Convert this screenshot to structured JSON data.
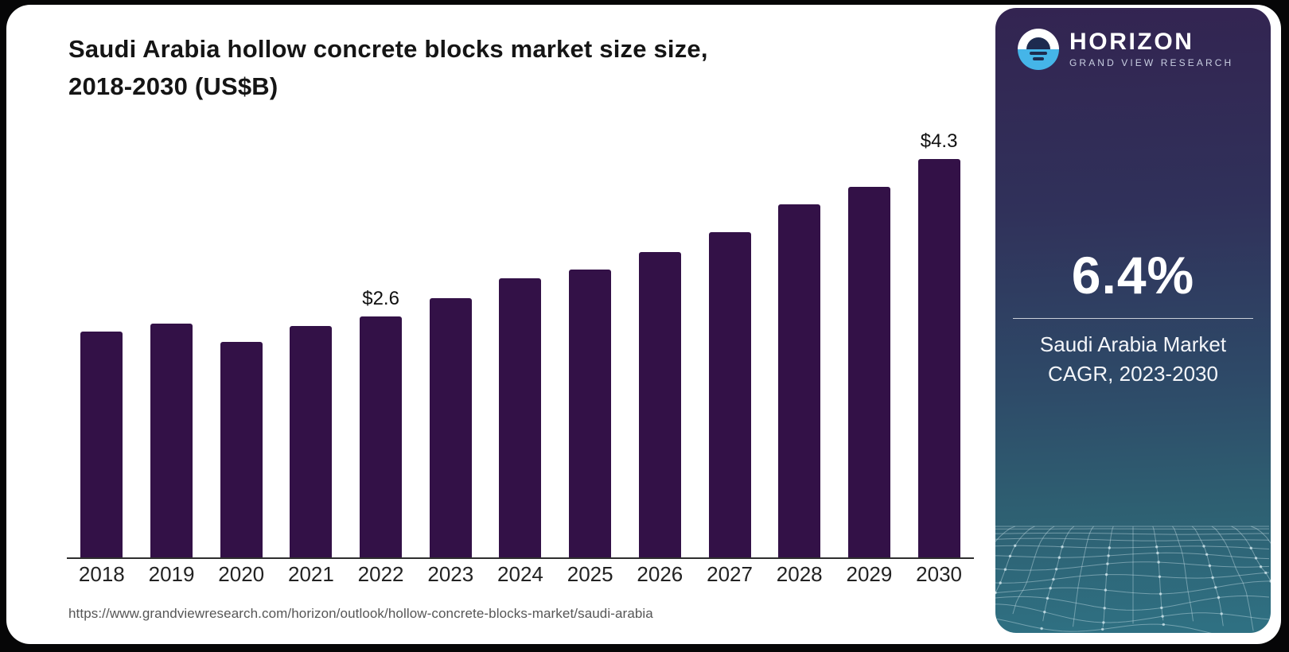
{
  "chart": {
    "title_line1": "Saudi Arabia hollow concrete blocks market size size,",
    "title_line2": "2018-2030 (US$B)",
    "source_url": "https://www.grandviewresearch.com/horizon/outlook/hollow-concrete-blocks-market/saudi-arabia",
    "bar_color": "#331147",
    "axis_color": "#2e2e2e"
  },
  "chart_data": {
    "type": "bar",
    "title": "Saudi Arabia hollow concrete blocks market size size, 2018-2030 (US$B)",
    "categories": [
      "2018",
      "2019",
      "2020",
      "2021",
      "2022",
      "2023",
      "2024",
      "2025",
      "2026",
      "2027",
      "2028",
      "2029",
      "2030"
    ],
    "values": [
      2.44,
      2.52,
      2.33,
      2.5,
      2.6,
      2.8,
      3.01,
      3.11,
      3.3,
      3.51,
      3.81,
      4.0,
      4.3
    ],
    "data_labels": {
      "2022": "$2.6",
      "2030": "$4.3"
    },
    "xlabel": "",
    "ylabel": "",
    "ylim": [
      0,
      4.6
    ],
    "grid": false,
    "legend": "none"
  },
  "sidebar": {
    "brand_name": "HORIZON",
    "brand_subtitle": "GRAND VIEW RESEARCH",
    "cagr_value": "6.4%",
    "cagr_caption_line1": "Saudi Arabia Market",
    "cagr_caption_line2": "CAGR, 2023-2030",
    "colors": {
      "top": "#332451",
      "bottom": "#2f7183",
      "logo_blue": "#45b5e8",
      "logo_navy": "#1d2b4f",
      "mesh_line": "rgba(210,232,238,0.42)"
    }
  }
}
